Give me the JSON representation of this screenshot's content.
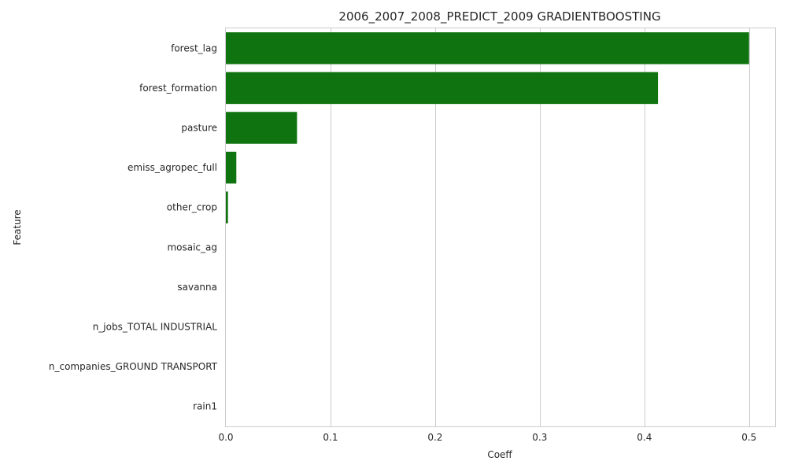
{
  "chart_data": {
    "type": "bar",
    "orientation": "horizontal",
    "title": "2006_2007_2008_PREDICT_2009 GRADIENTBOOSTING",
    "xlabel": "Coeff",
    "ylabel": "Feature",
    "categories": [
      "forest_lag",
      "forest_formation",
      "pasture",
      "emiss_agropec_full",
      "other_crop",
      "mosaic_ag",
      "savanna",
      "n_jobs_TOTAL INDUSTRIAL",
      "n_companies_GROUND TRANSPORT",
      "rain1"
    ],
    "values": [
      0.5,
      0.413,
      0.068,
      0.01,
      0.002,
      0.0,
      0.0,
      0.0,
      0.0,
      0.0
    ],
    "xlim": [
      0,
      0.525
    ],
    "xticks": [
      0,
      0.1,
      0.2,
      0.3,
      0.4,
      0.5
    ],
    "xtick_labels": [
      "0.0",
      "0.1",
      "0.2",
      "0.3",
      "0.4",
      "0.5"
    ],
    "grid": true,
    "bar_color": "#0f730f"
  }
}
